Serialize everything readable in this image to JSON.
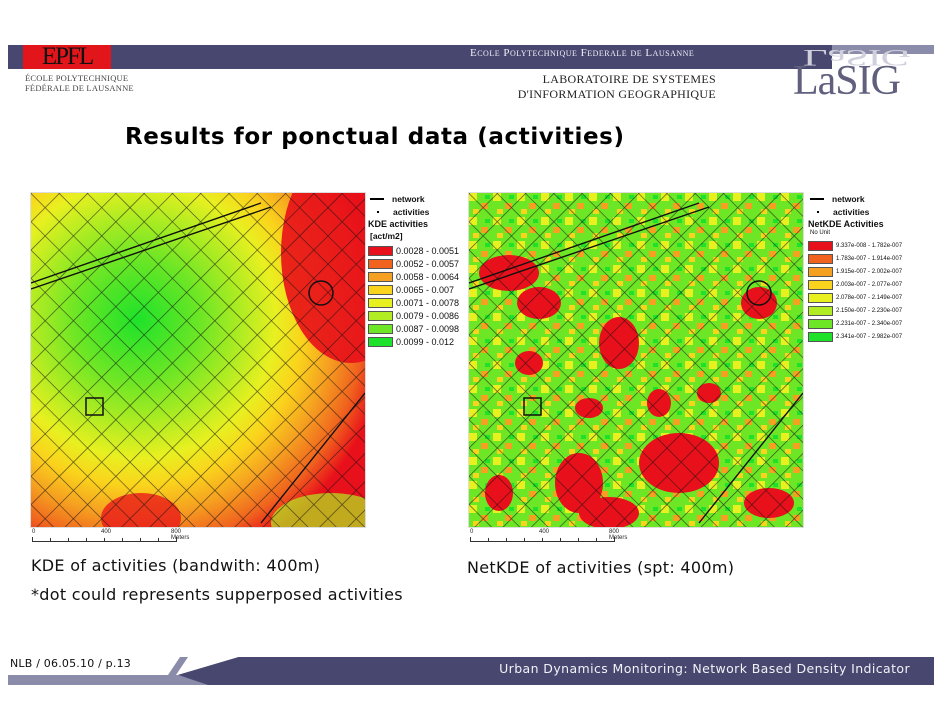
{
  "header": {
    "epfl_logo": "EPFL",
    "epfl_subtitle_line1": "ÉCOLE POLYTECHNIQUE",
    "epfl_subtitle_line2": "FÉDÉRALE DE LAUSANNE",
    "school_name": "Ecole Polytechnique Federale de Lausanne",
    "lab_line1": "LABORATOIRE DE SYSTEMES",
    "lab_line2": "D'INFORMATION GEOGRAPHIQUE",
    "lab_logo": "LaSIG",
    "colors": {
      "bar": "#47476f",
      "bar_light": "#8b8baa",
      "epfl_red": "#e2151b"
    }
  },
  "slide": {
    "title": "Results for ponctual data (activities)"
  },
  "maps": [
    {
      "id": "kde",
      "caption": "KDE of activities (bandwith: 400m)",
      "note": "*dot could represents supperposed activities",
      "legend": {
        "network_label": "network",
        "activities_label": "activities",
        "title": "KDE activities",
        "unit": "[act/m2]",
        "classes": [
          {
            "label": "0.0028 - 0.0051",
            "color": "#e8101a"
          },
          {
            "label": "0.0052 - 0.0057",
            "color": "#f0621e"
          },
          {
            "label": "0.0058 - 0.0064",
            "color": "#f5a020"
          },
          {
            "label": "0.0065 - 0.007",
            "color": "#fad41c"
          },
          {
            "label": "0.0071 - 0.0078",
            "color": "#e8f020"
          },
          {
            "label": "0.0079 - 0.0086",
            "color": "#b2ec22"
          },
          {
            "label": "0.0087 - 0.0098",
            "color": "#6de625"
          },
          {
            "label": "0.0099 - 0.012",
            "color": "#1ee22a"
          }
        ]
      },
      "scalebar": {
        "tick0": "0",
        "tick1": "400",
        "tick2": "800 Meters"
      }
    },
    {
      "id": "netkde",
      "caption": "NetKDE of activities (spt: 400m)",
      "legend": {
        "network_label": "network",
        "activities_label": "activities",
        "title": "NetKDE Activities",
        "unit": "No Unit",
        "classes": [
          {
            "label": "9.337e-008 - 1.782e-007",
            "color": "#e8101a"
          },
          {
            "label": "1.783e-007 - 1.914e-007",
            "color": "#f0621e"
          },
          {
            "label": "1.915e-007 - 2.002e-007",
            "color": "#f5a020"
          },
          {
            "label": "2.003e-007 - 2.077e-007",
            "color": "#fad41c"
          },
          {
            "label": "2.078e-007 - 2.149e-007",
            "color": "#e8f020"
          },
          {
            "label": "2.150e-007 - 2.230e-007",
            "color": "#b2ec22"
          },
          {
            "label": "2.231e-007 - 2.340e-007",
            "color": "#6de625"
          },
          {
            "label": "2.341e-007 - 2.982e-007",
            "color": "#1ee22a"
          }
        ]
      },
      "scalebar": {
        "tick0": "0",
        "tick1": "400",
        "tick2": "800 Meters"
      }
    }
  ],
  "footer": {
    "left": "NLB / 06.05.10 / p.13",
    "right": "Urban Dynamics Monitoring: Network Based Density Indicator"
  }
}
